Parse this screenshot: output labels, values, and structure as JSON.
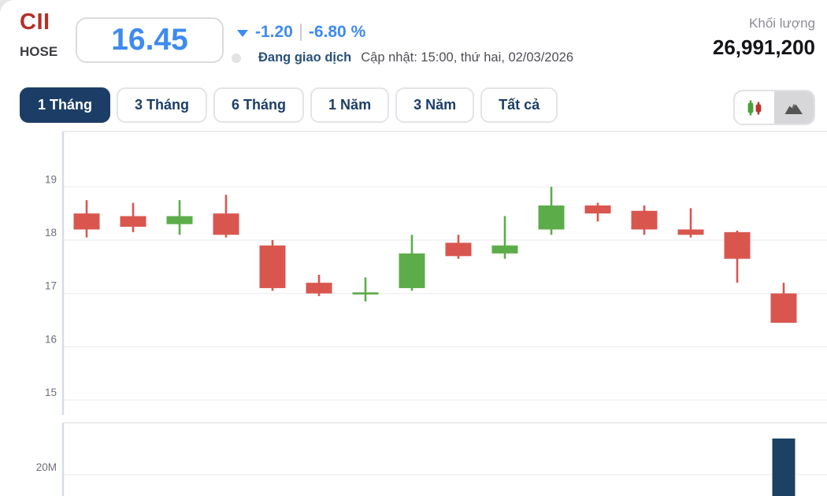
{
  "header": {
    "ticker": "CII",
    "exchange": "HOSE",
    "price": "16.45",
    "change": "-1.20",
    "change_percent": "-6.80 %",
    "status": "Đang giao dịch",
    "updated": "Cập nhật: 15:00, thứ hai, 02/03/2026",
    "volume_label": "Khối lượng",
    "volume_value": "26,991,200"
  },
  "tabs": [
    {
      "label": "1 Tháng",
      "active": true
    },
    {
      "label": "3 Tháng",
      "active": false
    },
    {
      "label": "6 Tháng",
      "active": false
    },
    {
      "label": "1 Năm",
      "active": false
    },
    {
      "label": "3 Năm",
      "active": false
    },
    {
      "label": "Tất cả",
      "active": false
    }
  ],
  "chart_toggle": {
    "options": [
      "candlestick",
      "area"
    ],
    "highlighted": "area"
  },
  "colors": {
    "ticker_red": "#b23129",
    "price_blue": "#3e8bef",
    "navy": "#1c3e66",
    "candle_up": "#5cad4a",
    "candle_down": "#d9564f",
    "volume_bar": "#1c4164",
    "grid": "#ededf1",
    "axis_line": "#d6dce9",
    "panel_border": "#e6e6ea",
    "tick_text": "#6e6e77"
  },
  "chart_data": [
    {
      "type": "candlestick",
      "panel": "price",
      "title": "CII 1-month daily candles",
      "ylim": [
        14.8,
        20.0
      ],
      "grid": true,
      "yticks": [
        {
          "label": "19",
          "value": 19
        },
        {
          "label": "18",
          "value": 18
        },
        {
          "label": "17",
          "value": 17
        },
        {
          "label": "16",
          "value": 16
        },
        {
          "label": "15",
          "value": 15
        }
      ],
      "candles": [
        {
          "open": 18.5,
          "high": 18.75,
          "low": 18.05,
          "close": 18.2
        },
        {
          "open": 18.45,
          "high": 18.7,
          "low": 18.15,
          "close": 18.25
        },
        {
          "open": 18.3,
          "high": 18.75,
          "low": 18.1,
          "close": 18.45
        },
        {
          "open": 18.5,
          "high": 18.85,
          "low": 18.05,
          "close": 18.1
        },
        {
          "open": 17.9,
          "high": 18.0,
          "low": 17.05,
          "close": 17.1
        },
        {
          "open": 17.2,
          "high": 17.35,
          "low": 16.95,
          "close": 17.0
        },
        {
          "open": 16.98,
          "high": 17.3,
          "low": 16.85,
          "close": 17.02
        },
        {
          "open": 17.1,
          "high": 18.1,
          "low": 17.05,
          "close": 17.75
        },
        {
          "open": 17.95,
          "high": 18.1,
          "low": 17.65,
          "close": 17.7
        },
        {
          "open": 17.75,
          "high": 18.45,
          "low": 17.65,
          "close": 17.9
        },
        {
          "open": 18.2,
          "high": 19.0,
          "low": 18.1,
          "close": 18.65
        },
        {
          "open": 18.65,
          "high": 18.7,
          "low": 18.35,
          "close": 18.5
        },
        {
          "open": 18.55,
          "high": 18.65,
          "low": 18.1,
          "close": 18.2
        },
        {
          "open": 18.2,
          "high": 18.6,
          "low": 18.05,
          "close": 18.1
        },
        {
          "open": 18.15,
          "high": 18.18,
          "low": 17.2,
          "close": 17.65
        },
        {
          "open": 17.0,
          "high": 17.2,
          "low": 16.45,
          "close": 16.45
        }
      ]
    },
    {
      "type": "bar",
      "panel": "volume",
      "title": "Volume",
      "yticks": [
        {
          "label": "20M",
          "value": 20000000
        }
      ],
      "bars": [
        {
          "index": 15,
          "value": 26991200
        }
      ]
    }
  ]
}
